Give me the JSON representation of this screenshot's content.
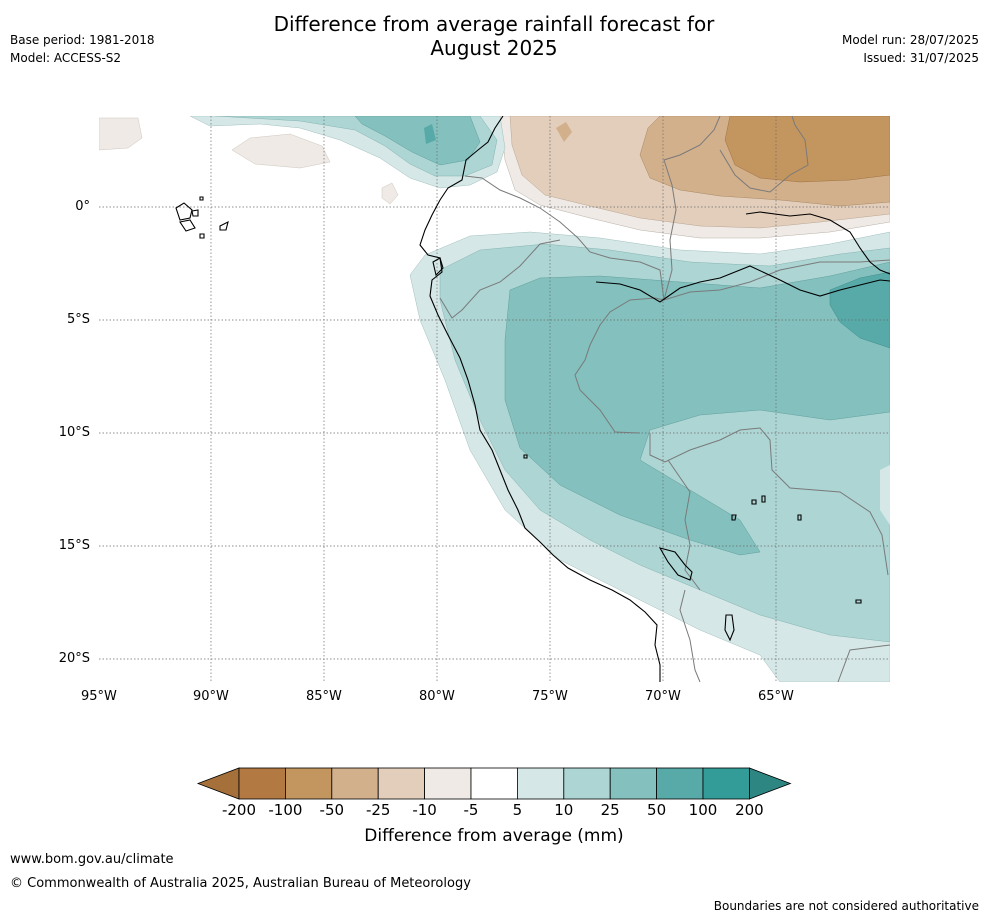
{
  "header": {
    "title_line1": "Difference from average rainfall forecast for",
    "title_line2": "August 2025",
    "base_period": "Base period: 1981-2018",
    "model": "Model: ACCESS-S2",
    "model_run": "Model run: 28/07/2025",
    "issued": "Issued: 31/07/2025"
  },
  "axes": {
    "lat_ticks": [
      "0°",
      "5°S",
      "10°S",
      "15°S",
      "20°S"
    ],
    "lon_ticks": [
      "95°W",
      "90°W",
      "85°W",
      "80°W",
      "75°W",
      "70°W",
      "65°W"
    ]
  },
  "colorbar": {
    "label": "Difference from average (mm)",
    "ticks": [
      "-200",
      "-100",
      "-50",
      "-25",
      "-10",
      "-5",
      "5",
      "10",
      "25",
      "50",
      "100",
      "200"
    ],
    "colors": [
      "#a5703a",
      "#b27a42",
      "#c3955f",
      "#d2b08c",
      "#e2cebb",
      "#efeae5",
      "#ffffff",
      "#d5e8e7",
      "#acd5d4",
      "#83c0be",
      "#57aaa8",
      "#339c98",
      "#2e8683"
    ]
  },
  "footer": {
    "url": "www.bom.gov.au/climate",
    "copyright": "© Commonwealth of Australia 2025, Australian Bureau of Meteorology",
    "disclaimer": "Boundaries are not considered authoritative"
  }
}
